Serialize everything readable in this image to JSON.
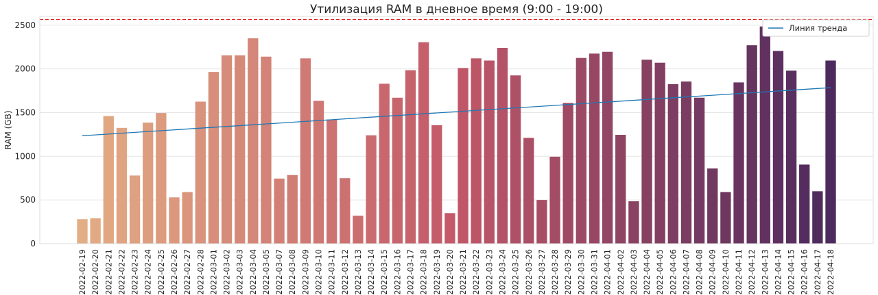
{
  "chart_data": {
    "type": "bar",
    "title": "Утилизация RAM в дневное время (9:00 - 19:00)",
    "xlabel": "",
    "ylabel": "RAM (GB)",
    "ylim": [
      0,
      2600
    ],
    "yticks": [
      0,
      500,
      1000,
      1500,
      2000,
      2500
    ],
    "grid": true,
    "legend_position": "top-right",
    "categories": [
      "2022-02-19",
      "2022-02-20",
      "2022-02-21",
      "2022-02-22",
      "2022-02-23",
      "2022-02-24",
      "2022-02-25",
      "2022-02-26",
      "2022-02-27",
      "2022-02-28",
      "2022-03-01",
      "2022-03-02",
      "2022-03-03",
      "2022-03-04",
      "2022-03-05",
      "2022-03-07",
      "2022-03-08",
      "2022-03-09",
      "2022-03-10",
      "2022-03-11",
      "2022-03-12",
      "2022-03-13",
      "2022-03-14",
      "2022-03-15",
      "2022-03-16",
      "2022-03-17",
      "2022-03-18",
      "2022-03-19",
      "2022-03-20",
      "2022-03-21",
      "2022-03-22",
      "2022-03-23",
      "2022-03-24",
      "2022-03-25",
      "2022-03-26",
      "2022-03-27",
      "2022-03-28",
      "2022-03-29",
      "2022-03-30",
      "2022-03-31",
      "2022-04-01",
      "2022-04-02",
      "2022-04-03",
      "2022-04-04",
      "2022-04-05",
      "2022-04-06",
      "2022-04-07",
      "2022-04-08",
      "2022-04-09",
      "2022-04-10",
      "2022-04-11",
      "2022-04-12",
      "2022-04-13",
      "2022-04-14",
      "2022-04-15",
      "2022-04-16",
      "2022-04-17",
      "2022-04-18"
    ],
    "values": [
      280,
      290,
      1460,
      1325,
      780,
      1385,
      1495,
      530,
      590,
      1625,
      1965,
      2155,
      2155,
      2350,
      2140,
      745,
      785,
      2120,
      1635,
      1420,
      750,
      320,
      1240,
      1830,
      1670,
      1985,
      2305,
      1355,
      350,
      2010,
      2120,
      2095,
      2240,
      1925,
      1210,
      500,
      995,
      1610,
      2125,
      2175,
      2195,
      1245,
      485,
      2105,
      2070,
      1825,
      1855,
      1670,
      860,
      590,
      1845,
      2270,
      2485,
      2205,
      1980,
      905,
      600,
      2095
    ],
    "trend": {
      "name": "Линия тренда",
      "start": 1235,
      "end": 1785,
      "color": "#1f77b4"
    },
    "threshold": {
      "value": 2565,
      "color": "#e31a1c"
    },
    "palette": {
      "start": "#e3ad85",
      "mid": "#c25868",
      "end": "#4c2a5d"
    }
  }
}
